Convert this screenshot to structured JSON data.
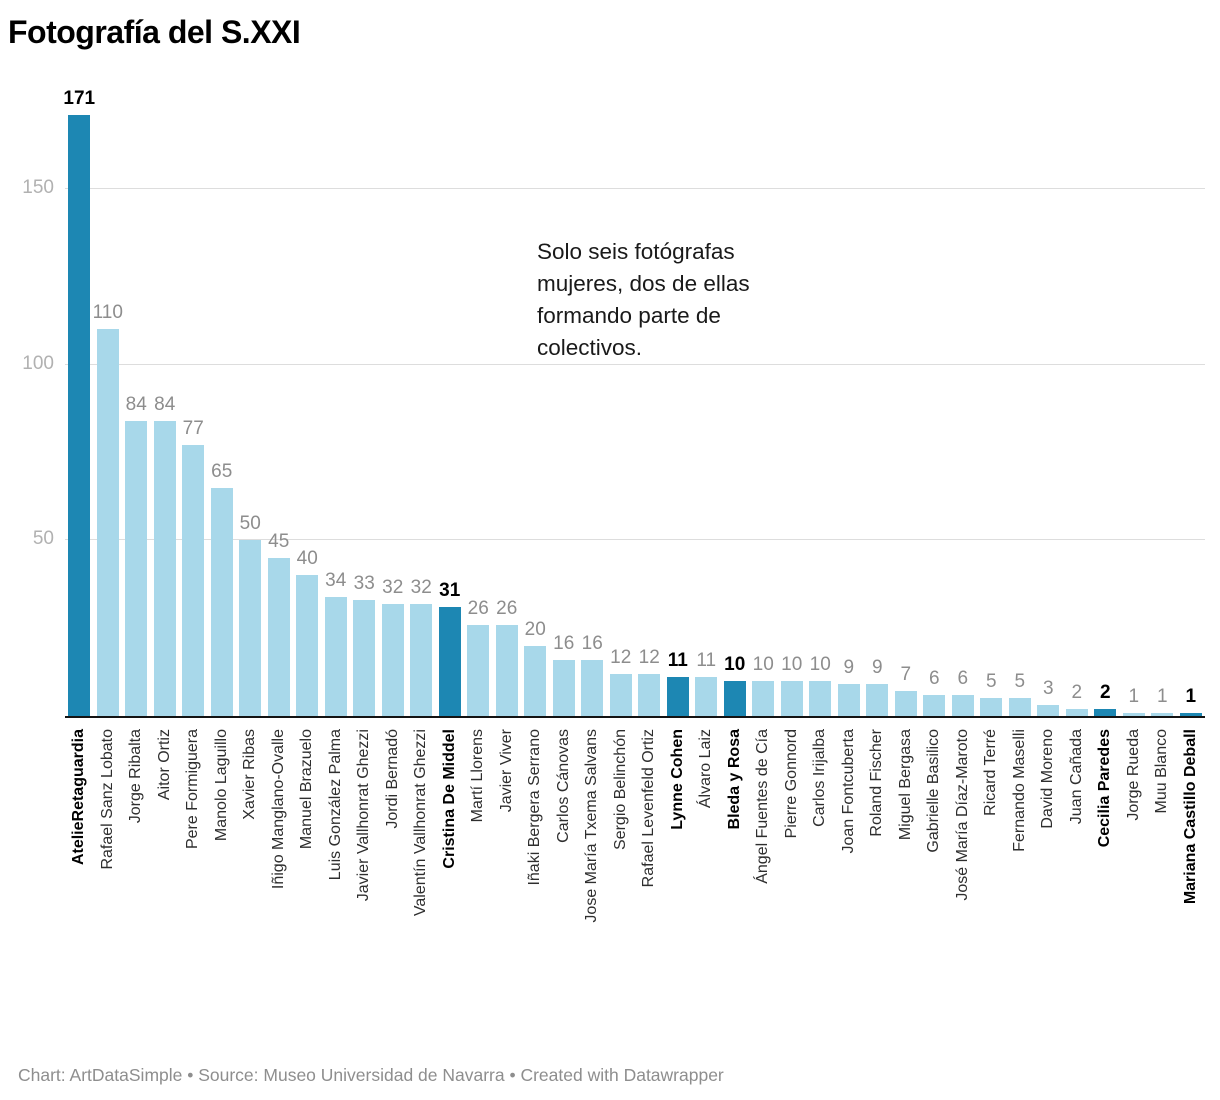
{
  "title": "Fotografía del S.XXI",
  "annotation": "Solo seis fotógrafas mujeres, dos de ellas formando parte de colectivos.",
  "footer": "Chart: ArtDataSimple • Source: Museo Universidad de Navarra • Created with Datawrapper",
  "colors": {
    "bar": "#a8d8ea",
    "highlight": "#1d87b3",
    "gridline": "#dddddd",
    "axis": "#131313",
    "value_label": "#8d8d8d",
    "value_label_highlight": "#000000",
    "ytick_label": "#b1b1b1"
  },
  "chart_data": {
    "type": "bar",
    "title": "Fotografía del S.XXI",
    "annotation": "Solo seis fotógrafas mujeres, dos de ellas formando parte de colectivos.",
    "xlabel": "",
    "ylabel": "",
    "ylim": [
      0,
      171
    ],
    "yticks": [
      50,
      100,
      150
    ],
    "grid": true,
    "legend": "none",
    "categories": [
      "AtelieRetaguardia",
      "Rafael Sanz Lobato",
      "Jorge Ribalta",
      "Aitor Ortiz",
      "Pere Formiguera",
      "Manolo Laguillo",
      "Xavier Ribas",
      "Iñigo Manglano-Ovalle",
      "Manuel Brazuelo",
      "Luis González Palma",
      "Javier Vallhonrat Ghezzi",
      "Jordi Bernadó",
      "Valentín Vallhonrat Ghezzi",
      "Cristina De Middel",
      "Martí Llorens",
      "Javier Viver",
      "Iñaki Bergera Serrano",
      "Carlos Cánovas",
      "Jose María Txema Salvans",
      "Sergio Belinchón",
      "Rafael Levenfeld Ortiz",
      "Lynne Cohen",
      "Álvaro Laiz",
      "Bleda y Rosa",
      "Ángel Fuentes de Cía",
      "Pierre Gonnord",
      "Carlos Irijalba",
      "Joan Fontcuberta",
      "Roland Fischer",
      "Miguel Bergasa",
      "Gabrielle Basilico",
      "José María Díaz-Maroto",
      "Ricard Terré",
      "Fernando Maselli",
      "David Moreno",
      "Juan Cañada",
      "Cecilia Paredes",
      "Jorge Rueda",
      "Muu Blanco",
      "Mariana Castillo Deball"
    ],
    "values": [
      171,
      110,
      84,
      84,
      77,
      65,
      50,
      45,
      40,
      34,
      33,
      32,
      32,
      31,
      26,
      26,
      20,
      16,
      16,
      12,
      12,
      11,
      11,
      10,
      10,
      10,
      10,
      9,
      9,
      7,
      6,
      6,
      5,
      5,
      3,
      2,
      2,
      1,
      1,
      1
    ],
    "highlight_indices": [
      0,
      13,
      21,
      23,
      36,
      39
    ],
    "highlight_names": [
      "AtelieRetaguardia",
      "Cristina De Middel",
      "Lynne Cohen",
      "Bleda y Rosa",
      "Cecilia Paredes",
      "Mariana Castillo Deball"
    ]
  }
}
